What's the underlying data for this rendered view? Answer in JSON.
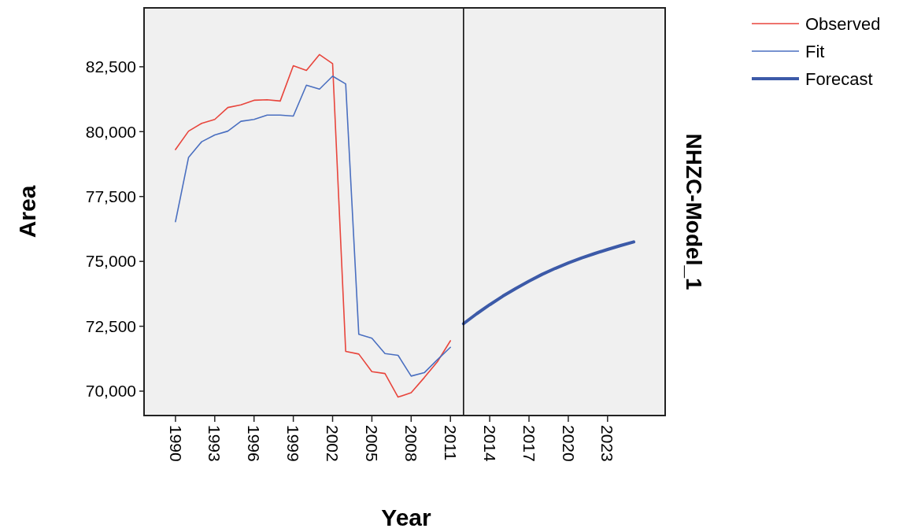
{
  "chart_data": {
    "type": "line",
    "xlabel": "Year",
    "ylabel": "Area",
    "annotations": [
      "NHZC-Model_1"
    ],
    "xlim": [
      1987.6,
      2027.4
    ],
    "xticks": [
      1990,
      1993,
      1996,
      1999,
      2002,
      2005,
      2008,
      2011,
      2014,
      2017,
      2020,
      2023
    ],
    "ylim": [
      69060,
      84770
    ],
    "yticks": [
      {
        "value": 70000,
        "label": "70,000"
      },
      {
        "value": 72500,
        "label": "72,500"
      },
      {
        "value": 75000,
        "label": "75,000"
      },
      {
        "value": 77500,
        "label": "77,500"
      },
      {
        "value": 80000,
        "label": "80,000"
      },
      {
        "value": 82500,
        "label": "82,500"
      }
    ],
    "grid": false,
    "legend": "top right",
    "marker": "none",
    "line_style": "solid",
    "ref_lines": [
      {
        "axis": "x",
        "value": 2012,
        "color": "#000000"
      }
    ],
    "series": [
      {
        "name": "Observed",
        "color": "#e8453c",
        "x": [
          1990,
          1991,
          1992,
          1993,
          1994,
          1995,
          1996,
          1997,
          1998,
          1999,
          2000,
          2001,
          2002,
          2003,
          2004,
          2005,
          2006,
          2007,
          2008,
          2009,
          2010,
          2011
        ],
        "values": [
          79310,
          80020,
          80320,
          80470,
          80930,
          81030,
          81210,
          81230,
          81180,
          82540,
          82360,
          82970,
          82620,
          71530,
          71430,
          70750,
          70680,
          69770,
          69940,
          70520,
          71130,
          71940
        ]
      },
      {
        "name": "Fit",
        "color": "#4a6fc0",
        "x": [
          1990,
          1991,
          1992,
          1993,
          1994,
          1995,
          1996,
          1997,
          1998,
          1999,
          2000,
          2001,
          2002,
          2003,
          2004,
          2005,
          2006,
          2007,
          2008,
          2009,
          2010,
          2011
        ],
        "values": [
          76530,
          79010,
          79610,
          79870,
          80020,
          80400,
          80470,
          80640,
          80640,
          80600,
          81790,
          81640,
          82140,
          81840,
          72190,
          72040,
          71450,
          71380,
          70580,
          70710,
          71210,
          71690
        ]
      },
      {
        "name": "Forecast",
        "color": "#3c5aa8",
        "x": [
          2012,
          2013,
          2014,
          2015,
          2016,
          2017,
          2018,
          2019,
          2020,
          2021,
          2022,
          2023,
          2024,
          2025
        ],
        "values": [
          72600,
          72980,
          73330,
          73660,
          73960,
          74240,
          74500,
          74730,
          74940,
          75130,
          75300,
          75460,
          75610,
          75750
        ]
      }
    ]
  }
}
